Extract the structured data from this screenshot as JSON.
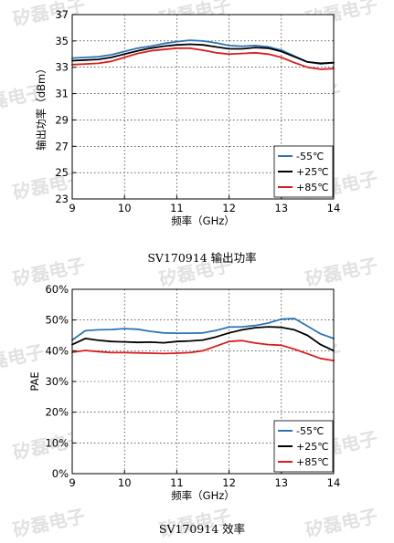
{
  "colors": {
    "series_m55": "#2e75b6",
    "series_p25": "#000000",
    "series_p85": "#d81e1e",
    "watermark": "#c9c9c9"
  },
  "watermark_text": "矽磊电子",
  "captions": {
    "chart1": "SV170914 输出功率",
    "chart2": "SV170914 效率"
  },
  "chart_data": [
    {
      "type": "line",
      "title": "",
      "caption": "SV170914 输出功率",
      "xlabel": "频率（GHz）",
      "ylabel": "输出功率（dBm）",
      "xlim": [
        9,
        14
      ],
      "ylim": [
        23,
        37
      ],
      "x_ticks": [
        "9",
        "10",
        "11",
        "12",
        "13",
        "14"
      ],
      "y_ticks": [
        "23",
        "25",
        "27",
        "29",
        "31",
        "33",
        "35",
        "37"
      ],
      "grid": true,
      "legend_position": "bottom-right",
      "x": [
        9,
        9.25,
        9.5,
        9.75,
        10,
        10.25,
        10.5,
        10.75,
        11,
        11.25,
        11.5,
        11.75,
        12,
        12.25,
        12.5,
        12.75,
        13,
        13.25,
        13.5,
        13.75,
        14
      ],
      "series": [
        {
          "name": "-55℃",
          "color": "#2e75b6",
          "values": [
            33.7,
            33.75,
            33.8,
            33.95,
            34.2,
            34.45,
            34.6,
            34.8,
            34.95,
            35.05,
            35.0,
            34.85,
            34.65,
            34.6,
            34.65,
            34.55,
            34.3,
            33.85,
            33.4,
            33.25,
            33.35
          ]
        },
        {
          "name": "+25℃",
          "color": "#000000",
          "values": [
            33.5,
            33.55,
            33.6,
            33.75,
            34.0,
            34.25,
            34.45,
            34.6,
            34.7,
            34.75,
            34.7,
            34.55,
            34.4,
            34.4,
            34.5,
            34.45,
            34.2,
            33.8,
            33.4,
            33.3,
            33.35
          ]
        },
        {
          "name": "+85℃",
          "color": "#d81e1e",
          "values": [
            33.2,
            33.25,
            33.3,
            33.45,
            33.75,
            34.05,
            34.25,
            34.35,
            34.45,
            34.45,
            34.3,
            34.1,
            34.0,
            34.05,
            34.1,
            34.0,
            33.75,
            33.35,
            33.0,
            32.85,
            32.9
          ]
        }
      ]
    },
    {
      "type": "line",
      "title": "",
      "caption": "SV170914 效率",
      "xlabel": "频率（GHz）",
      "ylabel": "PAE",
      "xlim": [
        9,
        14
      ],
      "ylim": [
        0,
        60
      ],
      "x_ticks": [
        "9",
        "10",
        "11",
        "12",
        "13",
        "14"
      ],
      "y_ticks": [
        "0%",
        "10%",
        "20%",
        "30%",
        "40%",
        "50%",
        "60%"
      ],
      "grid": true,
      "legend_position": "bottom-right",
      "x": [
        9,
        9.25,
        9.5,
        9.75,
        10,
        10.25,
        10.5,
        10.75,
        11,
        11.25,
        11.5,
        11.75,
        12,
        12.25,
        12.5,
        12.75,
        13,
        13.25,
        13.5,
        13.75,
        14
      ],
      "series": [
        {
          "name": "-55℃",
          "color": "#2e75b6",
          "values": [
            43.5,
            46.5,
            46.8,
            46.9,
            47.2,
            47.0,
            46.3,
            45.8,
            45.7,
            45.7,
            45.8,
            46.6,
            47.7,
            47.8,
            48.2,
            49.0,
            50.3,
            50.5,
            48.0,
            45.5,
            44.0
          ]
        },
        {
          "name": "+25℃",
          "color": "#000000",
          "values": [
            42.0,
            44.0,
            43.4,
            43.0,
            42.9,
            42.7,
            42.8,
            42.6,
            43.0,
            43.2,
            43.5,
            44.5,
            45.8,
            46.8,
            47.5,
            47.8,
            47.6,
            46.8,
            45.0,
            42.0,
            40.0
          ]
        },
        {
          "name": "+85℃",
          "color": "#d81e1e",
          "values": [
            39.5,
            40.1,
            39.7,
            39.4,
            39.4,
            39.3,
            39.2,
            39.1,
            39.2,
            39.4,
            40.0,
            41.5,
            43.0,
            43.3,
            42.5,
            42.0,
            41.8,
            40.5,
            39.0,
            37.5,
            36.8
          ]
        }
      ]
    }
  ]
}
